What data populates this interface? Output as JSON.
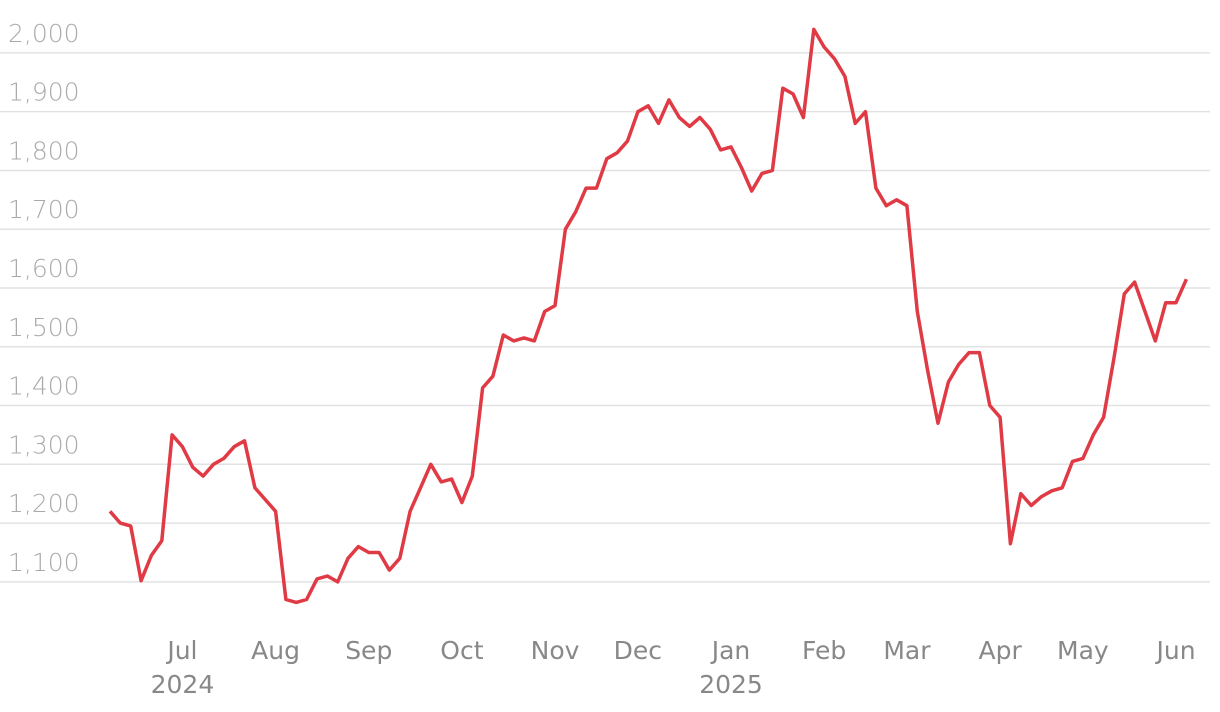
{
  "chart_data": {
    "type": "line",
    "categories": [
      null,
      null,
      null,
      null,
      null,
      null,
      null,
      "Jul 2024",
      null,
      null,
      null,
      null,
      null,
      null,
      null,
      null,
      "Aug",
      null,
      null,
      null,
      null,
      null,
      null,
      null,
      null,
      "Sep",
      null,
      null,
      null,
      null,
      null,
      null,
      null,
      null,
      "Oct",
      null,
      null,
      null,
      null,
      null,
      null,
      null,
      null,
      "Nov",
      null,
      null,
      null,
      null,
      null,
      null,
      null,
      "Dec",
      null,
      null,
      null,
      null,
      null,
      null,
      null,
      null,
      "Jan 2025",
      null,
      null,
      null,
      null,
      null,
      null,
      null,
      null,
      "Feb",
      null,
      null,
      null,
      null,
      null,
      null,
      null,
      "Mar",
      null,
      null,
      null,
      null,
      null,
      null,
      null,
      null,
      "Apr",
      null,
      null,
      null,
      null,
      null,
      null,
      null,
      "May",
      null,
      null,
      null,
      null,
      null,
      null,
      null,
      null,
      "Jun",
      null
    ],
    "series": [
      {
        "color": "#e03a45",
        "values": [
          1220,
          1200,
          1195,
          1102,
          1145,
          1170,
          1350,
          1330,
          1295,
          1280,
          1300,
          1310,
          1330,
          1340,
          1260,
          1240,
          1220,
          1070,
          1065,
          1070,
          1105,
          1110,
          1100,
          1140,
          1160,
          1150,
          1150,
          1120,
          1140,
          1220,
          1260,
          1300,
          1270,
          1275,
          1235,
          1280,
          1430,
          1450,
          1520,
          1510,
          1515,
          1510,
          1560,
          1570,
          1700,
          1730,
          1770,
          1770,
          1820,
          1830,
          1850,
          1900,
          1910,
          1880,
          1920,
          1890,
          1875,
          1890,
          1870,
          1835,
          1840,
          1805,
          1765,
          1795,
          1800,
          1940,
          1930,
          1890,
          2040,
          2010,
          1990,
          1960,
          1880,
          1900,
          1770,
          1740,
          1750,
          1740,
          1560,
          1460,
          1370,
          1440,
          1470,
          1490,
          1490,
          1400,
          1380,
          1165,
          1250,
          1230,
          1245,
          1255,
          1260,
          1305,
          1310,
          1350,
          1380,
          1480,
          1590,
          1610,
          1560,
          1510,
          1575,
          1575,
          1615
        ]
      }
    ],
    "ylim": [
      1030,
      2090
    ],
    "yticks": [
      {
        "value": 1100,
        "label": "1,100"
      },
      {
        "value": 1200,
        "label": "1,200"
      },
      {
        "value": 1300,
        "label": "1,300"
      },
      {
        "value": 1400,
        "label": "1,400"
      },
      {
        "value": 1500,
        "label": "1,500"
      },
      {
        "value": 1600,
        "label": "1,600"
      },
      {
        "value": 1700,
        "label": "1,700"
      },
      {
        "value": 1800,
        "label": "1,800"
      },
      {
        "value": 1900,
        "label": "1,900"
      },
      {
        "value": 2000,
        "label": "2,000"
      }
    ],
    "grid": true
  }
}
